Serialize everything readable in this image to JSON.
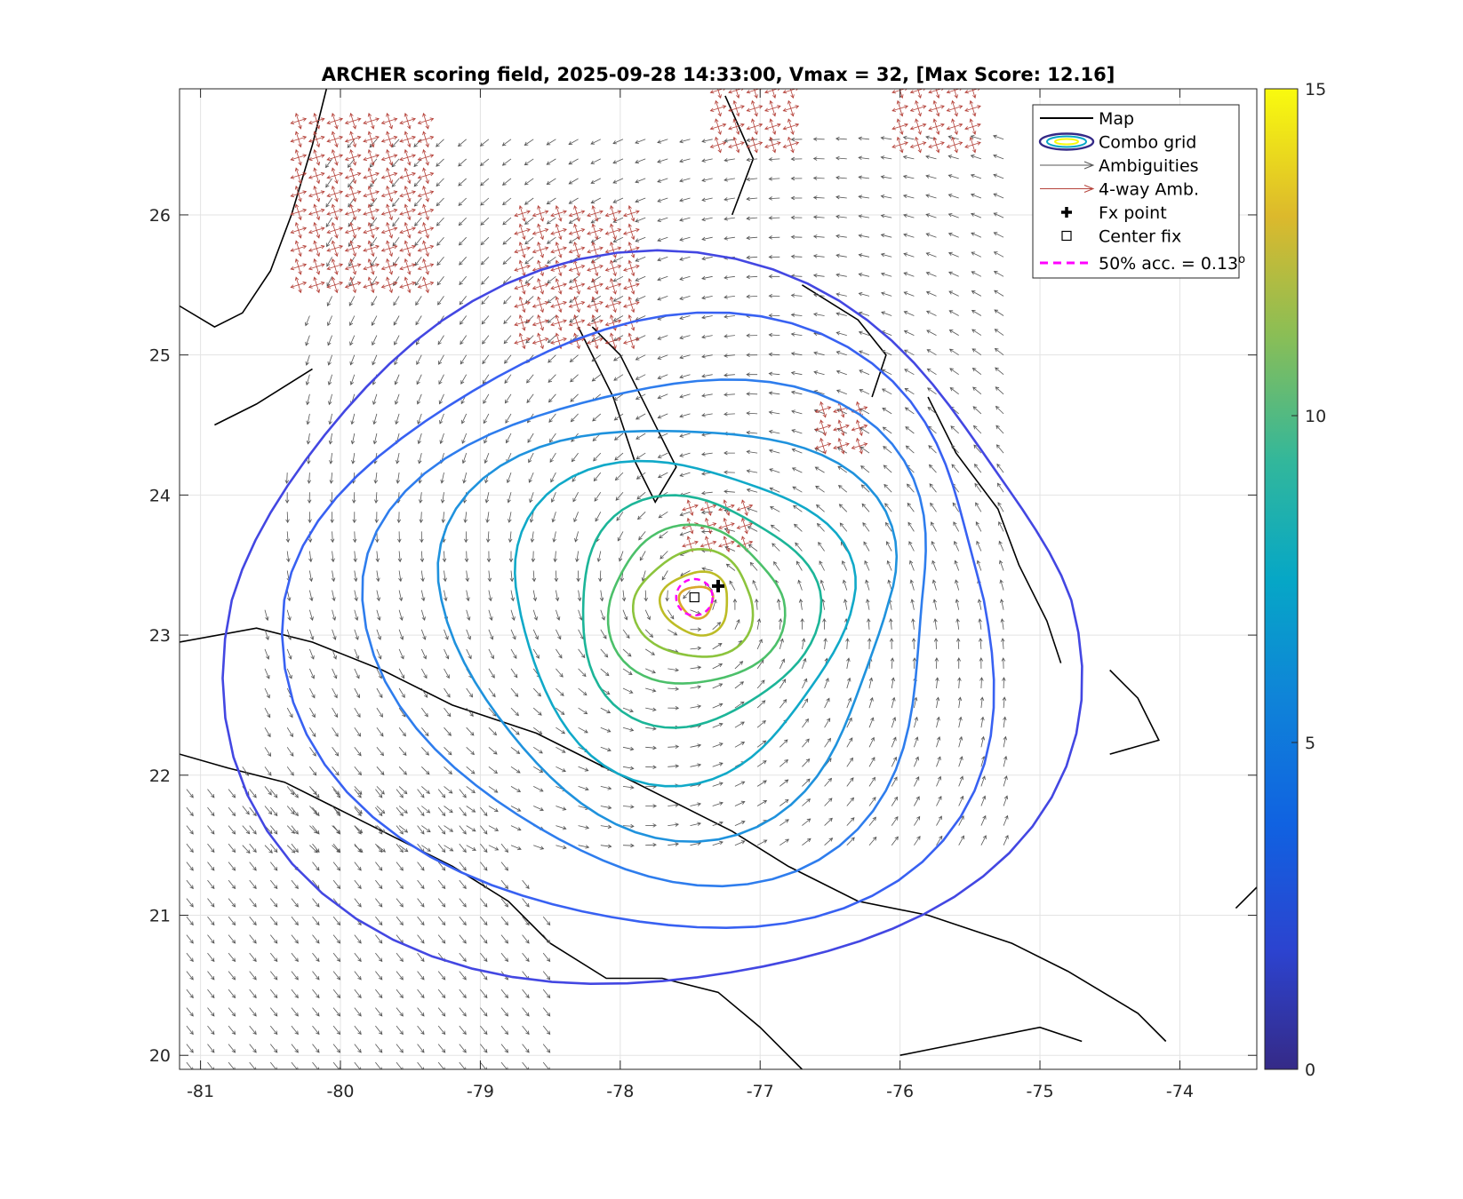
{
  "chart_data": {
    "type": "contour",
    "title": "ARCHER scoring field, 2025-09-28 14:33:00, Vmax = 32, [Max Score: 12.16]",
    "xlabel": "",
    "ylabel": "",
    "xlim": [
      -81.15,
      -73.45
    ],
    "ylim": [
      19.9,
      26.9
    ],
    "x_ticks": [
      -81,
      -80,
      -79,
      -78,
      -77,
      -76,
      -75,
      -74
    ],
    "y_ticks": [
      20,
      21,
      22,
      23,
      24,
      25,
      26
    ],
    "x_tick_labels": [
      "-81",
      "-80",
      "-79",
      "-78",
      "-77",
      "-76",
      "-75",
      "-74"
    ],
    "y_tick_labels": [
      "20",
      "21",
      "22",
      "23",
      "24",
      "25",
      "26"
    ],
    "grid": true,
    "legend_placement": "top-right",
    "legend": [
      {
        "label": "Map",
        "symbol": "black-line"
      },
      {
        "label": "Combo grid",
        "symbol": "contour-ellipse"
      },
      {
        "label": "Ambiguities",
        "symbol": "gray-arrow"
      },
      {
        "label": "4-way Amb.",
        "symbol": "red-arrow"
      },
      {
        "label": "Fx point",
        "symbol": "black-plus"
      },
      {
        "label": "Center fix",
        "symbol": "open-square"
      },
      {
        "label": "50% acc. = 0.13",
        "label_sup": "o",
        "symbol": "magenta-dashed"
      }
    ],
    "colorbar": {
      "min": 0,
      "max": 15,
      "ticks": [
        0,
        5,
        10,
        15
      ],
      "tick_labels": [
        "0",
        "5",
        "10",
        "15"
      ],
      "colormap": "parula"
    },
    "fx_point": {
      "lon": -77.3,
      "lat": 23.35
    },
    "center_fix": {
      "lon": -77.47,
      "lat": 23.27
    },
    "accuracy_50pct_deg": 0.13,
    "max_score": 12.16,
    "contour_center": {
      "lon": -77.45,
      "lat": 23.25
    },
    "contour_levels": [
      {
        "level": 12,
        "color": "#d9a72a",
        "rx": 0.12,
        "ry": 0.1
      },
      {
        "level": 11,
        "color": "#bdbc26",
        "rx": 0.24,
        "ry": 0.2
      },
      {
        "level": 10,
        "color": "#8cc43d",
        "rx": 0.42,
        "ry": 0.34
      },
      {
        "level": 9,
        "color": "#4cc06a",
        "rx": 0.62,
        "ry": 0.5
      },
      {
        "level": 8,
        "color": "#1cb598",
        "rx": 0.85,
        "ry": 0.72
      },
      {
        "level": 7,
        "color": "#10a9c8",
        "rx": 1.2,
        "ry": 1.0
      },
      {
        "level": 6,
        "color": "#1f92dd",
        "rx": 1.6,
        "ry": 1.3
      },
      {
        "level": 5,
        "color": "#2e7ded",
        "rx": 2.0,
        "ry": 1.6
      },
      {
        "level": 4,
        "color": "#3861f2",
        "rx": 2.5,
        "ry": 1.95
      },
      {
        "level": 3,
        "color": "#4347e2",
        "rx": 3.0,
        "ry": 2.3
      }
    ]
  }
}
